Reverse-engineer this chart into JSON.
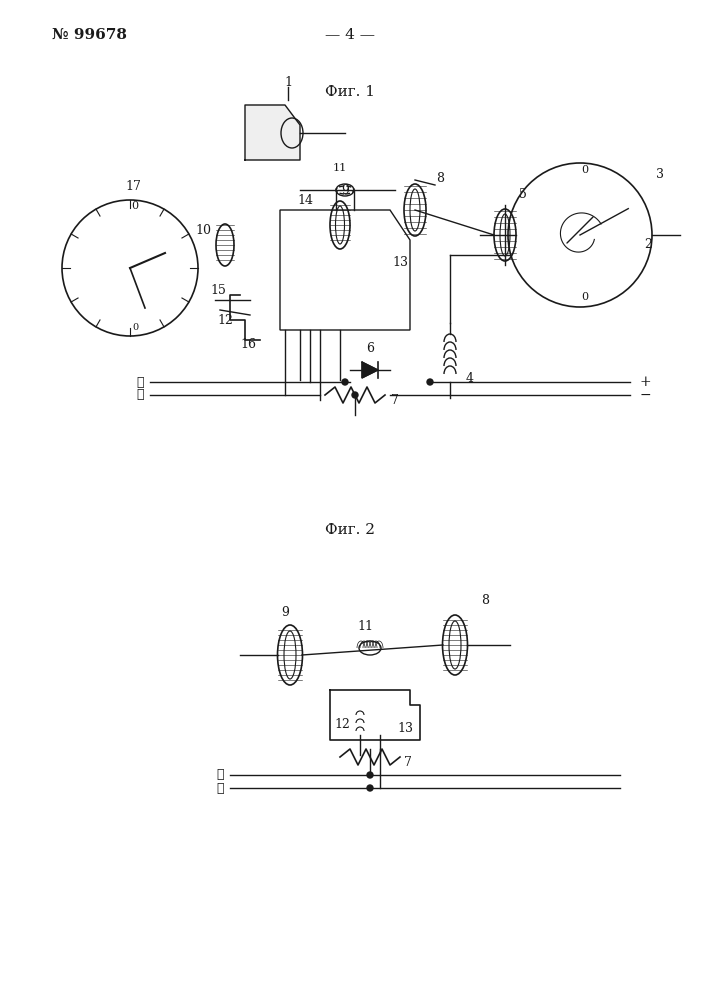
{
  "background_color": "#ffffff",
  "fig_width": 7.07,
  "fig_height": 10.0,
  "header_number": "№ 99678",
  "header_page": "— 4 —",
  "fig1_label": "Фиг. 1",
  "fig2_label": "Фиг. 2",
  "line_color": "#1a1a1a",
  "hatch_color": "#555555"
}
